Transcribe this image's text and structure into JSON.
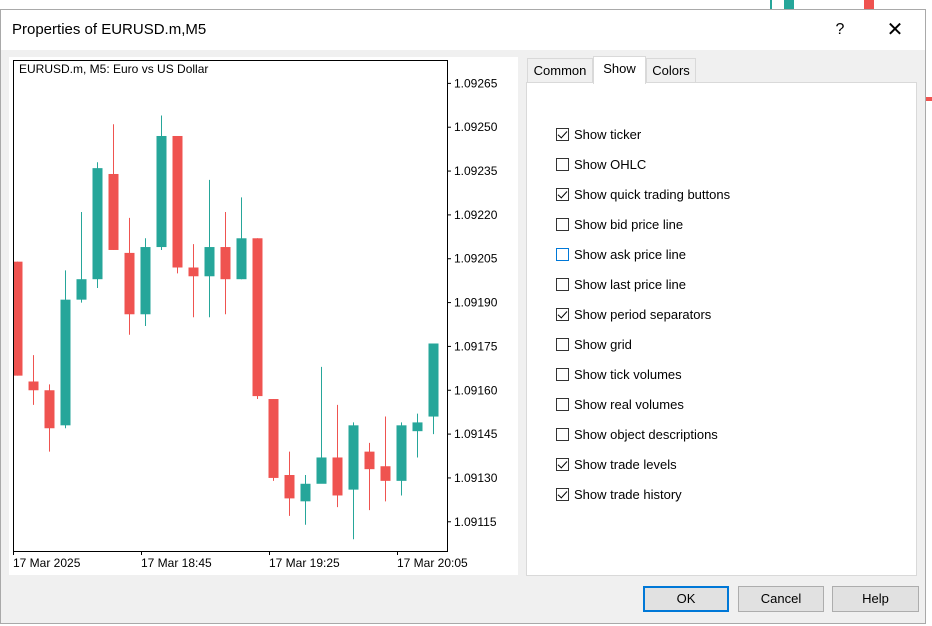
{
  "window": {
    "title": "Properties of EURUSD.m,M5",
    "help_glyph": "?",
    "close_glyph": "✕"
  },
  "chart": {
    "header": "EURUSD.m, M5:  Euro vs US Dollar",
    "y_ticks": [
      "1.09265",
      "1.09250",
      "1.09235",
      "1.09220",
      "1.09205",
      "1.09190",
      "1.09175",
      "1.09160",
      "1.09145",
      "1.09130",
      "1.09115"
    ],
    "x_ticks": [
      "17 Mar 2025",
      "17 Mar 18:45",
      "17 Mar 19:25",
      "17 Mar 20:05"
    ],
    "colors": {
      "bull": "#26a69a",
      "bear": "#ef5350",
      "frame": "#000000"
    }
  },
  "chart_data": {
    "type": "candlestick",
    "title": "EURUSD.m, M5:  Euro vs US Dollar",
    "ylim": [
      1.09105,
      1.09273
    ],
    "x_ticks": [
      "17 Mar 2025",
      "17 Mar 18:45",
      "17 Mar 19:25",
      "17 Mar 20:05"
    ],
    "candles": [
      {
        "o": 1.09204,
        "h": 1.09204,
        "l": 1.09165,
        "c": 1.09165
      },
      {
        "o": 1.09163,
        "h": 1.09172,
        "l": 1.09155,
        "c": 1.0916
      },
      {
        "o": 1.0916,
        "h": 1.09162,
        "l": 1.09139,
        "c": 1.09147
      },
      {
        "o": 1.09148,
        "h": 1.09201,
        "l": 1.09147,
        "c": 1.09191
      },
      {
        "o": 1.09191,
        "h": 1.09221,
        "l": 1.0919,
        "c": 1.09198
      },
      {
        "o": 1.09198,
        "h": 1.09238,
        "l": 1.09195,
        "c": 1.09236
      },
      {
        "o": 1.09234,
        "h": 1.09251,
        "l": 1.09208,
        "c": 1.09208
      },
      {
        "o": 1.09207,
        "h": 1.09219,
        "l": 1.09179,
        "c": 1.09186
      },
      {
        "o": 1.09186,
        "h": 1.09212,
        "l": 1.09182,
        "c": 1.09209
      },
      {
        "o": 1.09209,
        "h": 1.09254,
        "l": 1.09208,
        "c": 1.09247
      },
      {
        "o": 1.09247,
        "h": 1.09247,
        "l": 1.092,
        "c": 1.09202
      },
      {
        "o": 1.09202,
        "h": 1.0921,
        "l": 1.09185,
        "c": 1.09199
      },
      {
        "o": 1.09199,
        "h": 1.09232,
        "l": 1.09185,
        "c": 1.09209
      },
      {
        "o": 1.09209,
        "h": 1.09221,
        "l": 1.09186,
        "c": 1.09198
      },
      {
        "o": 1.09198,
        "h": 1.09226,
        "l": 1.09198,
        "c": 1.09212
      },
      {
        "o": 1.09212,
        "h": 1.09212,
        "l": 1.09157,
        "c": 1.09158
      },
      {
        "o": 1.09157,
        "h": 1.09157,
        "l": 1.09129,
        "c": 1.0913
      },
      {
        "o": 1.09131,
        "h": 1.09139,
        "l": 1.09117,
        "c": 1.09123
      },
      {
        "o": 1.09122,
        "h": 1.09131,
        "l": 1.09114,
        "c": 1.09128
      },
      {
        "o": 1.09128,
        "h": 1.09168,
        "l": 1.09129,
        "c": 1.09137
      },
      {
        "o": 1.09137,
        "h": 1.09155,
        "l": 1.0912,
        "c": 1.09124
      },
      {
        "o": 1.09126,
        "h": 1.09149,
        "l": 1.09109,
        "c": 1.09148
      },
      {
        "o": 1.09139,
        "h": 1.09142,
        "l": 1.09119,
        "c": 1.09133
      },
      {
        "o": 1.09134,
        "h": 1.09151,
        "l": 1.09122,
        "c": 1.09129
      },
      {
        "o": 1.09129,
        "h": 1.09149,
        "l": 1.09124,
        "c": 1.09148
      },
      {
        "o": 1.09146,
        "h": 1.09152,
        "l": 1.09137,
        "c": 1.09149
      },
      {
        "o": 1.09151,
        "h": 1.09176,
        "l": 1.09145,
        "c": 1.09176
      }
    ],
    "series_colors": {
      "bull": "#26a69a",
      "bear": "#ef5350"
    }
  },
  "tabs": [
    {
      "label": "Common",
      "active": false
    },
    {
      "label": "Show",
      "active": true
    },
    {
      "label": "Colors",
      "active": false
    }
  ],
  "options": [
    {
      "label": "Show ticker",
      "checked": true
    },
    {
      "label": "Show OHLC",
      "checked": false
    },
    {
      "label": "Show quick trading buttons",
      "checked": true
    },
    {
      "label": "Show bid price line",
      "checked": false
    },
    {
      "label": "Show ask price line",
      "checked": false,
      "focused": true
    },
    {
      "label": "Show last price line",
      "checked": false
    },
    {
      "label": "Show period separators",
      "checked": true
    },
    {
      "label": "Show grid",
      "checked": false
    },
    {
      "label": "Show tick volumes",
      "checked": false
    },
    {
      "label": "Show real volumes",
      "checked": false
    },
    {
      "label": "Show object descriptions",
      "checked": false
    },
    {
      "label": "Show trade levels",
      "checked": true
    },
    {
      "label": "Show trade history",
      "checked": true
    }
  ],
  "buttons": {
    "ok": "OK",
    "cancel": "Cancel",
    "help": "Help"
  }
}
